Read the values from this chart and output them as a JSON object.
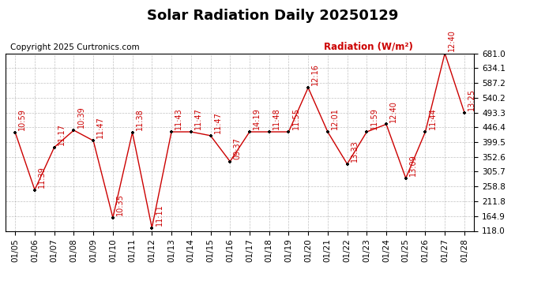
{
  "title": "Solar Radiation Daily 20250129",
  "copyright": "Copyright 2025 Curtronics.com",
  "legend_label2": "Radiation (W/m²)",
  "dates": [
    "01/05",
    "01/06",
    "01/07",
    "01/08",
    "01/09",
    "01/10",
    "01/11",
    "01/12",
    "01/13",
    "01/14",
    "01/15",
    "01/16",
    "01/17",
    "01/18",
    "01/19",
    "01/20",
    "01/21",
    "01/22",
    "01/23",
    "01/24",
    "01/25",
    "01/26",
    "01/27",
    "01/28"
  ],
  "values": [
    430,
    248,
    383,
    437,
    404,
    160,
    430,
    128,
    432,
    432,
    420,
    338,
    432,
    432,
    432,
    572,
    432,
    330,
    432,
    456,
    285,
    432,
    681,
    493
  ],
  "annotations": [
    "10:59",
    "11:39",
    "11:17",
    "10:39",
    "11:47",
    "10:35",
    "11:38",
    "11:11",
    "11:43",
    "11:47",
    "11:47",
    "09:37",
    "14:19",
    "11:48",
    "11:55",
    "12:16",
    "12:01",
    "13:33",
    "11:59",
    "12:40",
    "13:09",
    "11:44",
    "12:40",
    "13:25"
  ],
  "line_color": "#cc0000",
  "marker_color": "#000000",
  "background_color": "#ffffff",
  "grid_color": "#999999",
  "ylim_min": 118.0,
  "ylim_max": 681.0,
  "yticks": [
    118.0,
    164.9,
    211.8,
    258.8,
    305.7,
    352.6,
    399.5,
    446.4,
    493.3,
    540.2,
    587.2,
    634.1,
    681.0
  ],
  "title_fontsize": 13,
  "annotation_fontsize": 7,
  "copyright_fontsize": 7.5,
  "legend_fontsize": 8.5,
  "tick_fontsize": 7.5
}
